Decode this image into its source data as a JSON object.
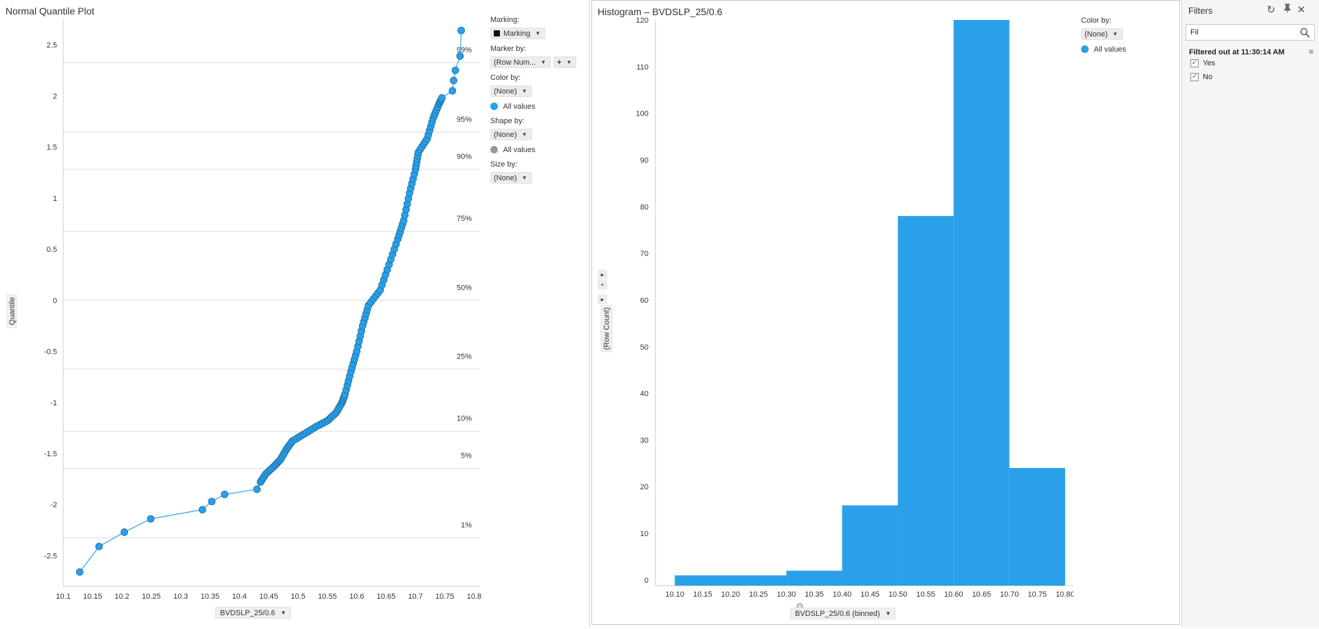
{
  "colors": {
    "accent": "#29a0e8",
    "marker_stroke": "#1d6ea3",
    "shape_gray": "#999999",
    "grid": "#dddddd"
  },
  "qq": {
    "title": "Normal Quantile Plot",
    "ylabel": "Quantile",
    "x_selector": "BVDSLP_25/0.6",
    "legend": {
      "marking_label": "Marking:",
      "marking_value": "Marking",
      "marker_by_label": "Marker by:",
      "marker_by_value": "(Row Num...",
      "marker_by_add": "+",
      "color_by_label": "Color by:",
      "color_by_value": "(None)",
      "color_item": "All values",
      "shape_by_label": "Shape by:",
      "shape_by_value": "(None)",
      "shape_item": "All values",
      "size_by_label": "Size by:",
      "size_by_value": "(None)"
    }
  },
  "hist": {
    "title": "Histogram – BVDSLP_25/0.6",
    "ylabel": "(Row Count)",
    "x_selector": "BVDSLP_25/0.6 (binned)",
    "legend": {
      "color_by_label": "Color by:",
      "color_by_value": "(None)",
      "item": "All values"
    },
    "side_controls": [
      "▸",
      "+",
      "▸"
    ]
  },
  "filters": {
    "title": "Filters",
    "search_value": "Fil",
    "group_title": "Filtered out at 11:30:14 AM",
    "options": [
      {
        "label": "Yes",
        "checked": true
      },
      {
        "label": "No",
        "checked": true
      }
    ],
    "icons": [
      "reset-icon",
      "pin-icon",
      "close-icon",
      "search-icon",
      "menu-icon"
    ]
  },
  "chart_data": [
    {
      "type": "scatter",
      "title": "Normal Quantile Plot",
      "xlabel": "BVDSLP_25/0.6",
      "ylabel": "Quantile",
      "xlim": [
        10.1,
        10.81
      ],
      "ylim": [
        -2.8,
        2.75
      ],
      "x_ticks": [
        "10.1",
        "10.15",
        "10.2",
        "10.25",
        "10.3",
        "10.35",
        "10.4",
        "10.45",
        "10.5",
        "10.55",
        "10.6",
        "10.65",
        "10.7",
        "10.75",
        "10.8"
      ],
      "y_ticks": [
        "-2.5",
        "-2",
        "-1.5",
        "-1",
        "-0.5",
        "0",
        "0.5",
        "1",
        "1.5",
        "2",
        "2.5"
      ],
      "percentiles": [
        {
          "label": "99%",
          "q": 2.326
        },
        {
          "label": "95%",
          "q": 1.645
        },
        {
          "label": "90%",
          "q": 1.282
        },
        {
          "label": "75%",
          "q": 0.674
        },
        {
          "label": "50%",
          "q": 0
        },
        {
          "label": "25%",
          "q": -0.674
        },
        {
          "label": "10%",
          "q": -1.282
        },
        {
          "label": "5%",
          "q": -1.645
        },
        {
          "label": "1%",
          "q": -2.326
        }
      ],
      "curve": [
        [
          10.128,
          -2.66
        ],
        [
          10.161,
          -2.41
        ],
        [
          10.204,
          -2.27
        ],
        [
          10.249,
          -2.14
        ],
        [
          10.337,
          -2.05
        ],
        [
          10.353,
          -1.97
        ],
        [
          10.375,
          -1.9
        ],
        [
          10.43,
          -1.85
        ],
        [
          10.436,
          -1.78
        ],
        [
          10.445,
          -1.7
        ],
        [
          10.46,
          -1.62
        ],
        [
          10.47,
          -1.56
        ],
        [
          10.48,
          -1.46
        ],
        [
          10.49,
          -1.38
        ],
        [
          10.51,
          -1.31
        ],
        [
          10.53,
          -1.24
        ],
        [
          10.55,
          -1.18
        ],
        [
          10.565,
          -1.1
        ],
        [
          10.575,
          -1.0
        ],
        [
          10.58,
          -0.92
        ],
        [
          10.59,
          -0.7
        ],
        [
          10.6,
          -0.5
        ],
        [
          10.61,
          -0.25
        ],
        [
          10.62,
          -0.05
        ],
        [
          10.64,
          0.1
        ],
        [
          10.655,
          0.35
        ],
        [
          10.67,
          0.6
        ],
        [
          10.68,
          0.78
        ],
        [
          10.69,
          1.05
        ],
        [
          10.7,
          1.28
        ],
        [
          10.705,
          1.45
        ],
        [
          10.72,
          1.58
        ],
        [
          10.73,
          1.78
        ],
        [
          10.74,
          1.92
        ],
        [
          10.745,
          1.98
        ],
        [
          10.763,
          2.05
        ],
        [
          10.765,
          2.15
        ],
        [
          10.768,
          2.25
        ],
        [
          10.776,
          2.39
        ],
        [
          10.778,
          2.64
        ]
      ]
    },
    {
      "type": "bar",
      "title": "Histogram – BVDSLP_25/0.6",
      "xlabel": "BVDSLP_25/0.6 (binned)",
      "ylabel": "(Row Count)",
      "ylim": [
        0,
        120
      ],
      "x_ticks": [
        "10.10",
        "10.15",
        "10.20",
        "10.25",
        "10.30",
        "10.35",
        "10.40",
        "10.45",
        "10.50",
        "10.55",
        "10.60",
        "10.65",
        "10.70",
        "10.75",
        "10.80"
      ],
      "y_ticks": [
        "0",
        "10",
        "20",
        "30",
        "40",
        "50",
        "60",
        "70",
        "80",
        "90",
        "100",
        "110",
        "120"
      ],
      "bins": [
        {
          "x0": 10.1,
          "x1": 10.3,
          "value": 1
        },
        {
          "x0": 10.3,
          "x1": 10.4,
          "value": 2
        },
        {
          "x0": 10.4,
          "x1": 10.5,
          "value": 16
        },
        {
          "x0": 10.5,
          "x1": 10.6,
          "value": 78
        },
        {
          "x0": 10.6,
          "x1": 10.7,
          "value": 120
        },
        {
          "x0": 10.7,
          "x1": 10.8,
          "value": 24
        }
      ]
    }
  ]
}
